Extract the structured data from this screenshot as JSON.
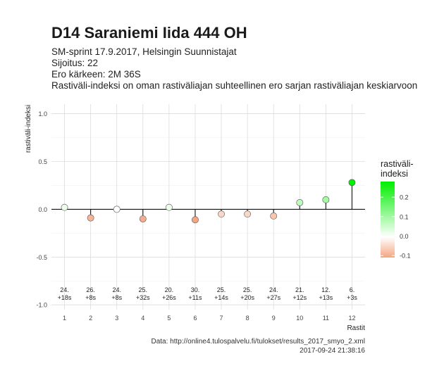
{
  "header": {
    "title": "D14 Saraniemi Iida 444 OH",
    "subtitle_lines": [
      "SM-sprint 17.9.2017, Helsingin Suunnistajat",
      "Sijoitus: 22",
      "Ero kärkeen: 2M 36S",
      "Rastiväli-indeksi on oman rastiväliajan suhteellinen ero sarjan rastiväliajan keskiarvoon"
    ]
  },
  "caption": {
    "source": "Data: http://online4.tulospalvelu.fi/tulokset/results_2017_smyo_2.xml",
    "timestamp": "2017-09-24 21:38:16"
  },
  "legend": {
    "title_line1": "rastiväli-",
    "title_line2": "indeksi",
    "ticks": [
      "0.2",
      "0.1",
      "0.0",
      "-0.1"
    ],
    "colors": {
      "low": "#f4a582",
      "mid": "#ffffff",
      "high": "#00ee00"
    }
  },
  "chart_data": {
    "type": "lollipop",
    "xlabel": "Rastit",
    "ylabel": "rastiväli-indeksi",
    "ylim": [
      -1.05,
      1.1
    ],
    "y_ticks": [
      "1.0",
      "0.5",
      "0.0",
      "-0.5",
      "-1.0"
    ],
    "x_ticks": [
      "1",
      "2",
      "3",
      "4",
      "5",
      "6",
      "7",
      "8",
      "9",
      "10",
      "11",
      "12"
    ],
    "grid": true,
    "points": [
      {
        "x": 1,
        "y": 0.02,
        "rank": "24.",
        "diff": "+18s"
      },
      {
        "x": 2,
        "y": -0.09,
        "rank": "26.",
        "diff": "+8s"
      },
      {
        "x": 3,
        "y": 0.0,
        "rank": "24.",
        "diff": "+8s"
      },
      {
        "x": 4,
        "y": -0.1,
        "rank": "25.",
        "diff": "+32s"
      },
      {
        "x": 5,
        "y": 0.02,
        "rank": "20.",
        "diff": "+26s"
      },
      {
        "x": 6,
        "y": -0.11,
        "rank": "30.",
        "diff": "+11s"
      },
      {
        "x": 7,
        "y": -0.05,
        "rank": "25.",
        "diff": "+14s"
      },
      {
        "x": 8,
        "y": -0.05,
        "rank": "25.",
        "diff": "+20s"
      },
      {
        "x": 9,
        "y": -0.07,
        "rank": "24.",
        "diff": "+27s"
      },
      {
        "x": 10,
        "y": 0.07,
        "rank": "21.",
        "diff": "+12s"
      },
      {
        "x": 11,
        "y": 0.1,
        "rank": "12.",
        "diff": "+13s"
      },
      {
        "x": 12,
        "y": 0.28,
        "rank": "6.",
        "diff": "+3s"
      }
    ]
  }
}
